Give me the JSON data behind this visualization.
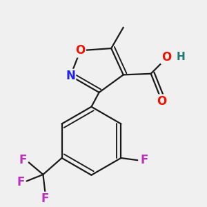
{
  "bg_color": "#f0f0f0",
  "bond_color": "#1a1a1a",
  "bond_width": 1.6,
  "atom_colors": {
    "O": "#ee1100",
    "N": "#2222ee",
    "H": "#227777",
    "F": "#bb33bb",
    "C": "#1a1a1a"
  }
}
